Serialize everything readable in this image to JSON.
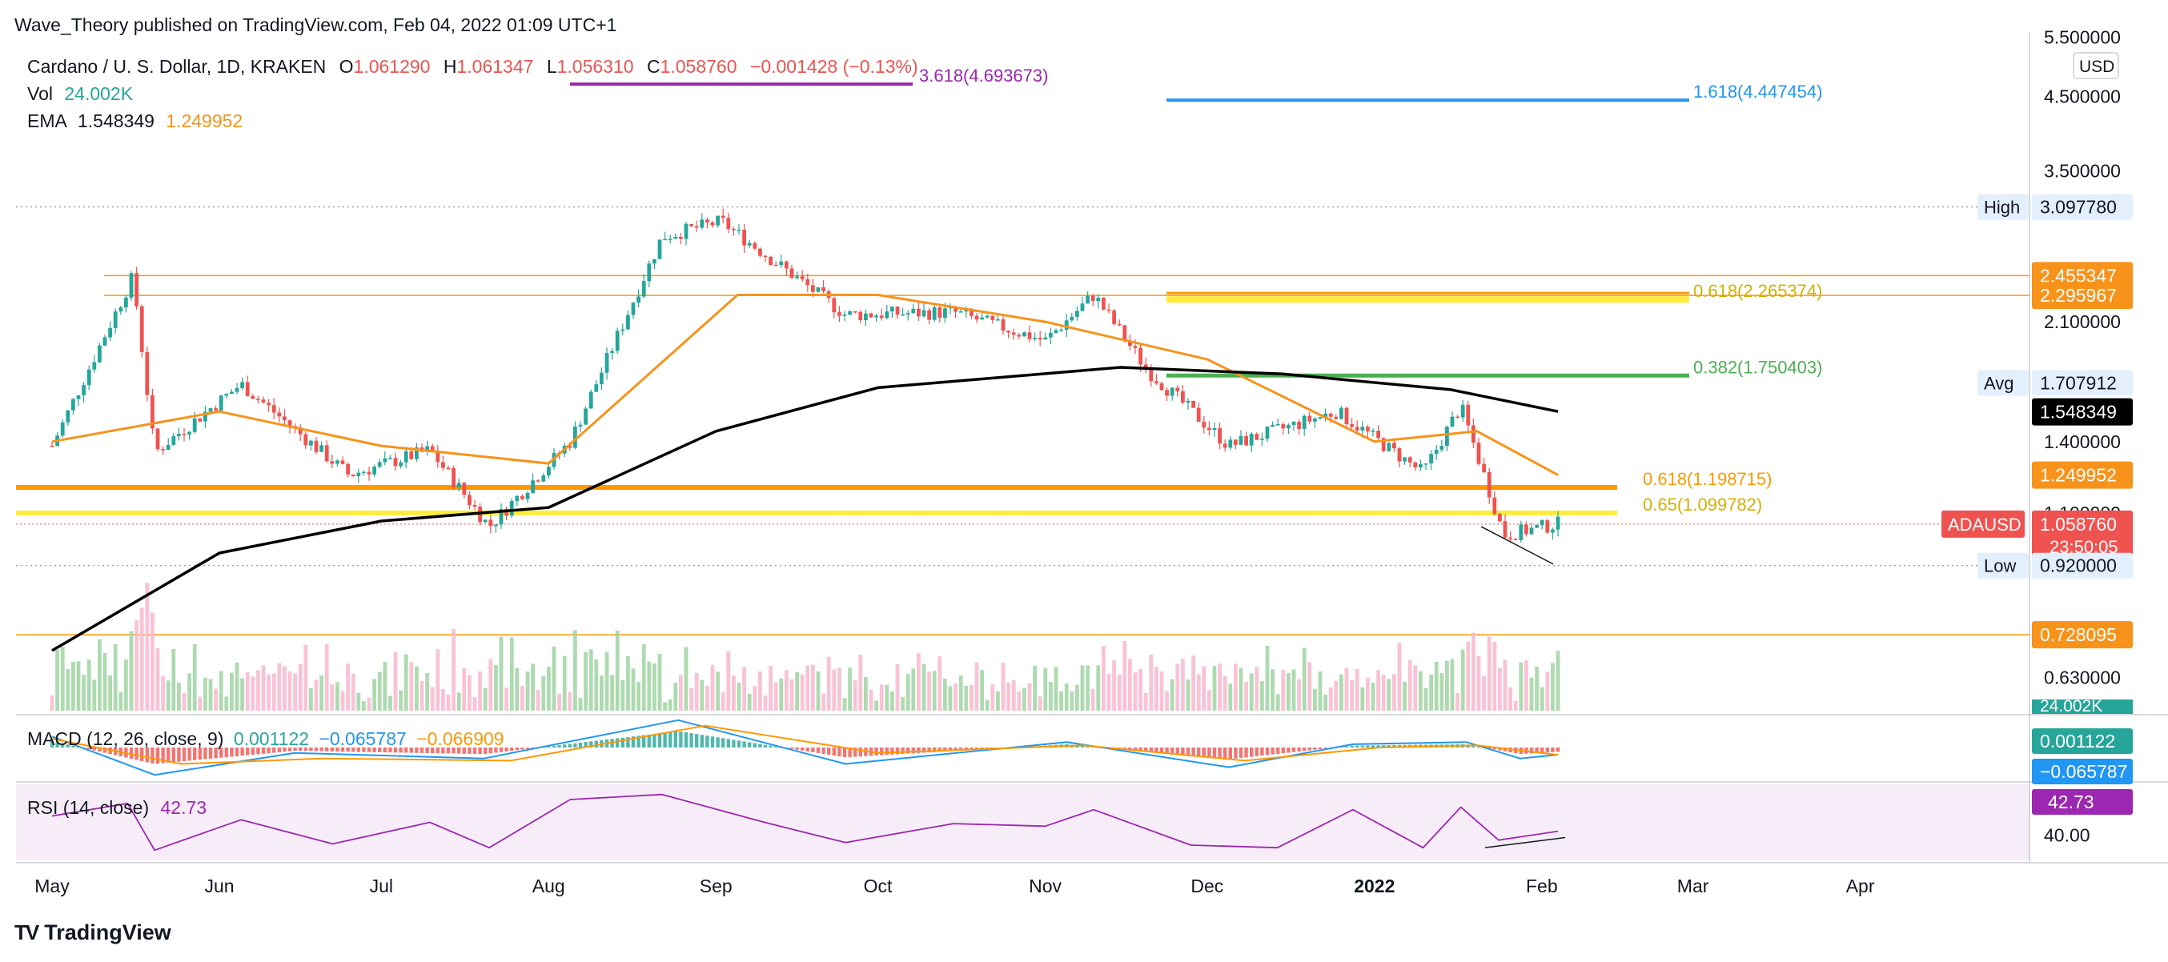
{
  "publish_line": "Wave_Theory published on TradingView.com, Feb 04, 2022 01:09 UTC+1",
  "header": {
    "pair": "Cardano / U. S. Dollar, 1D, KRAKEN",
    "o_label": "O",
    "o_value": "1.061290",
    "h_label": "H",
    "h_value": "1.061347",
    "l_label": "L",
    "l_value": "1.056310",
    "c_label": "C",
    "c_value": "1.058760",
    "change": "−0.001428 (−0.13%)",
    "vol_label": "Vol",
    "vol_value": "24.002K",
    "ema_label": "EMA",
    "ema_value1": "1.548349",
    "ema_value2": "1.249952"
  },
  "currency": "USD",
  "branding": "TradingView",
  "colors": {
    "up": "#26a69a",
    "down": "#ef5350",
    "ema50": "#f7931a",
    "ema200": "#000000",
    "fib_blue": "#2196f3",
    "fib_purple": "#9c27b0",
    "fib_green": "#4caf50",
    "fib_orange": "#ff9800",
    "fib_yellow": "#ffeb3b",
    "rsi": "#9c27b0",
    "macd": "#2196f3",
    "signal": "#ff9800"
  },
  "chart_data": [
    {
      "type": "line",
      "title": "Cardano / U. S. Dollar, 1D, KRAKEN",
      "scale": "log",
      "ylim": [
        0.56,
        5.6
      ],
      "grid": false,
      "x_ticks": [
        "May",
        "Jun",
        "Jul",
        "Aug",
        "Sep",
        "Oct",
        "Nov",
        "Dec",
        "2022",
        "Feb",
        "Mar",
        "Apr"
      ],
      "y_ticks": [
        "5.500000",
        "4.500000",
        "3.500000",
        "2.100000",
        "1.400000",
        "1.100000",
        "0.730000",
        "0.630000"
      ],
      "series": [
        {
          "name": "ADAUSD",
          "x": [
            "2021-05-01",
            "2021-05-16",
            "2021-05-20",
            "2021-06-05",
            "2021-06-25",
            "2021-07-10",
            "2021-07-21",
            "2021-08-05",
            "2021-08-22",
            "2021-09-02",
            "2021-09-25",
            "2021-10-15",
            "2021-11-01",
            "2021-11-10",
            "2021-11-20",
            "2021-12-05",
            "2021-12-25",
            "2022-01-10",
            "2022-01-17",
            "2022-01-25",
            "2022-02-04"
          ],
          "values": [
            1.38,
            2.45,
            1.35,
            1.7,
            1.25,
            1.36,
            1.05,
            1.4,
            2.8,
            2.95,
            2.15,
            2.17,
            1.97,
            2.3,
            1.78,
            1.38,
            1.55,
            1.26,
            1.58,
            1.02,
            1.06
          ]
        },
        {
          "name": "EMA",
          "x": [
            "2021-05-01",
            "2021-06-01",
            "2021-07-01",
            "2021-08-01",
            "2021-09-05",
            "2021-10-01",
            "2021-11-01",
            "2021-12-01",
            "2022-01-01",
            "2022-01-20",
            "2022-02-04"
          ],
          "values": [
            1.4,
            1.55,
            1.38,
            1.3,
            2.3,
            2.3,
            2.1,
            1.85,
            1.4,
            1.45,
            1.25
          ]
        },
        {
          "name": "EMA",
          "x": [
            "2021-05-01",
            "2021-06-01",
            "2021-07-01",
            "2021-08-01",
            "2021-09-01",
            "2021-10-01",
            "2021-11-15",
            "2021-12-15",
            "2022-01-15",
            "2022-02-04"
          ],
          "values": [
            0.69,
            0.96,
            1.07,
            1.12,
            1.45,
            1.68,
            1.8,
            1.76,
            1.67,
            1.55
          ]
        }
      ],
      "levels": [
        {
          "label": "3.618(4.693673)",
          "value": 4.693673
        },
        {
          "label": "1.618(4.447454)",
          "value": 4.447454
        },
        {
          "label": "0.618(2.265374)",
          "value": 2.265374
        },
        {
          "label": "0.382(1.750403)",
          "value": 1.750403
        },
        {
          "label": "0.618(1.198715)",
          "value": 1.198715
        },
        {
          "label": "0.65(1.099782)",
          "value": 1.099782
        }
      ],
      "price_tags": [
        {
          "label": "",
          "value": "2.455347"
        },
        {
          "label": "",
          "value": "2.295967"
        },
        {
          "label": "",
          "value": "1.548349"
        },
        {
          "label": "",
          "value": "1.249952"
        },
        {
          "label": "ADAUSD",
          "value": "1.058760",
          "sub": "23:50:05"
        },
        {
          "label": "",
          "value": "0.728095"
        }
      ],
      "stat_tags": [
        {
          "label": "High",
          "value": "3.097780"
        },
        {
          "label": "Avg",
          "value": "1.707912"
        },
        {
          "label": "Low",
          "value": "0.920000"
        }
      ],
      "volume_tag": "24.002K"
    },
    {
      "type": "line",
      "title": "MACD (12, 26, close, 9)",
      "values_shown": [
        "0.001122",
        "−0.065787",
        "−0.066909"
      ],
      "series": [
        {
          "name": "",
          "x": [
            "2021-05-01",
            "2021-05-20",
            "2021-06-15",
            "2021-07-20",
            "2021-08-25",
            "2021-09-25",
            "2021-11-05",
            "2021-12-05",
            "2021-12-28",
            "2022-01-18",
            "2022-01-28",
            "2022-02-04"
          ],
          "values": [
            0.1,
            -0.25,
            -0.05,
            -0.1,
            0.25,
            -0.15,
            0.05,
            -0.18,
            0.03,
            0.05,
            -0.1,
            -0.066
          ]
        },
        {
          "name": "",
          "x": [
            "2021-05-01",
            "2021-05-25",
            "2021-06-20",
            "2021-07-25",
            "2021-08-30",
            "2021-10-01",
            "2021-11-08",
            "2021-12-08",
            "2022-01-02",
            "2022-01-20",
            "2022-02-04"
          ],
          "values": [
            0.08,
            -0.15,
            -0.1,
            -0.12,
            0.2,
            -0.05,
            0.02,
            -0.12,
            0.0,
            0.02,
            -0.067
          ]
        }
      ],
      "histogram_note": ""
    },
    {
      "type": "line",
      "title": "RSI (14, close)",
      "value_shown": "42.73",
      "y_ticks": [
        "40.00"
      ],
      "series": [
        {
          "name": "",
          "x": [
            "2021-05-01",
            "2021-05-15",
            "2021-05-20",
            "2021-06-05",
            "2021-06-22",
            "2021-07-10",
            "2021-07-21",
            "2021-08-05",
            "2021-08-22",
            "2021-09-10",
            "2021-09-25",
            "2021-10-15",
            "2021-11-01",
            "2021-11-10",
            "2021-11-28",
            "2021-12-14",
            "2021-12-28",
            "2022-01-10",
            "2022-01-17",
            "2022-01-24",
            "2022-02-04"
          ],
          "values": [
            55,
            65,
            28,
            52,
            33,
            50,
            30,
            68,
            72,
            50,
            34,
            49,
            47,
            60,
            32,
            30,
            60,
            30,
            62,
            36,
            43
          ]
        }
      ]
    }
  ]
}
